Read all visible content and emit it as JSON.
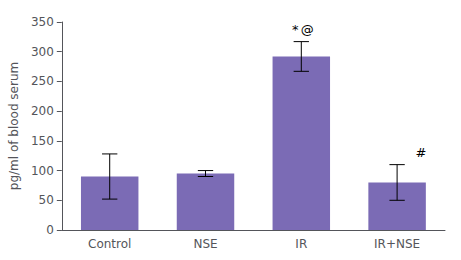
{
  "chart_data": {
    "type": "bar",
    "categories": [
      "Control",
      "NSE",
      "IR",
      "IR+NSE"
    ],
    "values": [
      90,
      95,
      292,
      80
    ],
    "errors": [
      38,
      5,
      25,
      30
    ],
    "color": "#7B6BB5",
    "ylabel": "pg/ml of blood serum",
    "ylim": [
      0,
      350
    ],
    "yticks": [
      0,
      50,
      100,
      150,
      200,
      250,
      300,
      350
    ],
    "grid": false,
    "annotations": [
      {
        "text": "*",
        "category": "IR"
      },
      {
        "text": "@",
        "category": "IR"
      },
      {
        "text": "#",
        "category": "IR+NSE"
      }
    ]
  }
}
